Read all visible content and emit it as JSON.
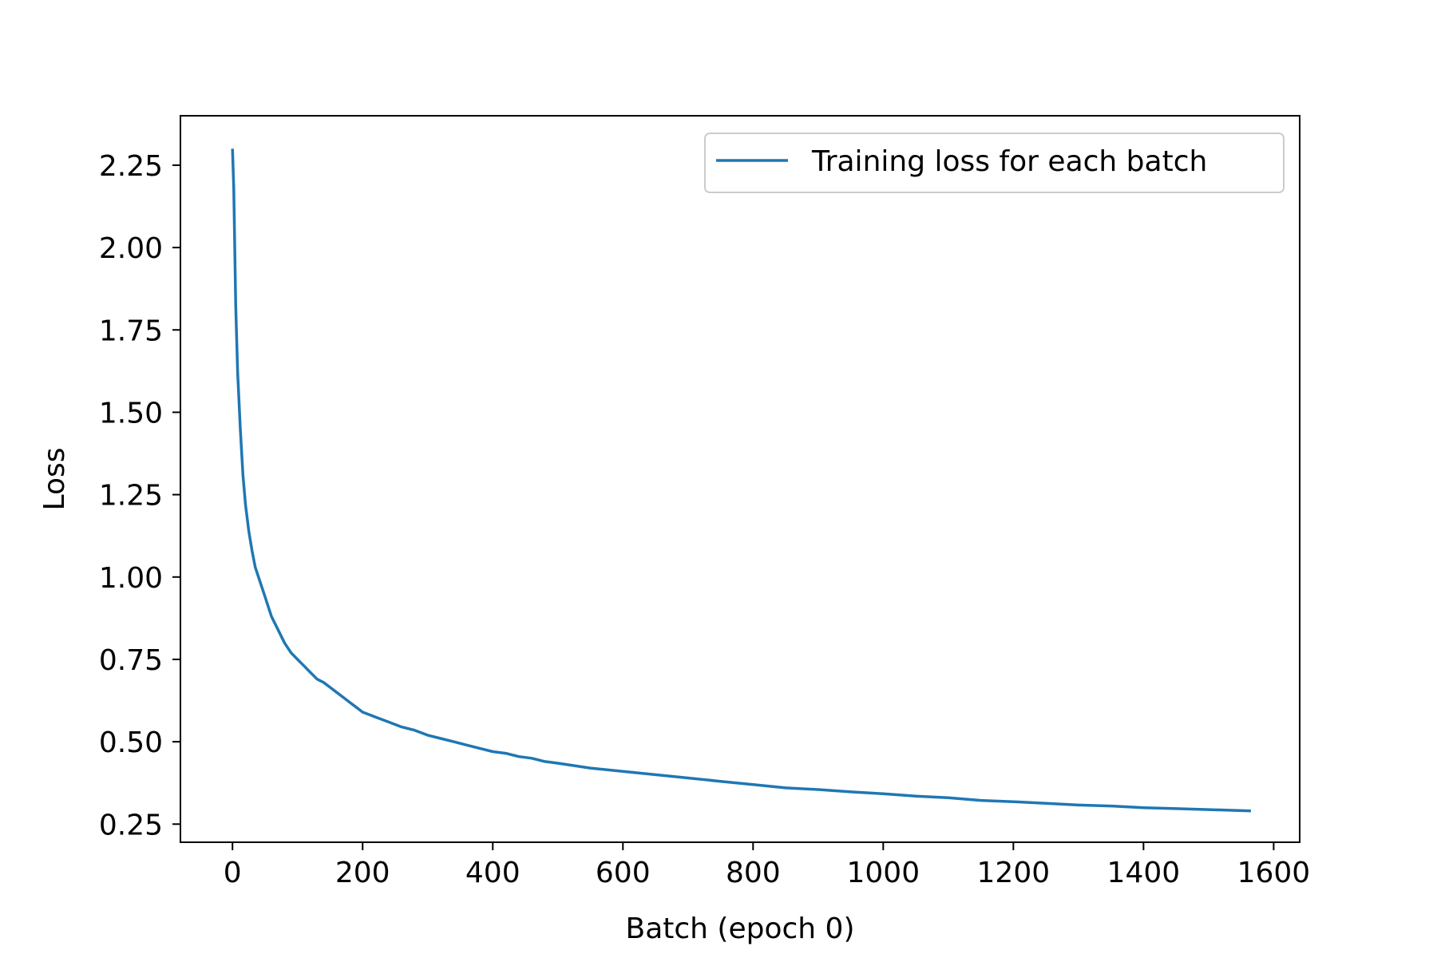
{
  "chart_data": {
    "type": "line",
    "title": "",
    "xlabel": "Batch (epoch 0)",
    "ylabel": "Loss",
    "xlim": [
      -80,
      1640
    ],
    "ylim": [
      0.195,
      2.4
    ],
    "xticks": [
      0,
      200,
      400,
      600,
      800,
      1000,
      1200,
      1400,
      1600
    ],
    "xtick_labels": [
      "0",
      "200",
      "400",
      "600",
      "800",
      "1000",
      "1200",
      "1400",
      "1600"
    ],
    "yticks": [
      0.25,
      0.5,
      0.75,
      1.0,
      1.25,
      1.5,
      1.75,
      2.0,
      2.25
    ],
    "ytick_labels": [
      "0.25",
      "0.50",
      "0.75",
      "1.00",
      "1.25",
      "1.50",
      "1.75",
      "2.00",
      "2.25"
    ],
    "grid": false,
    "legend_position": "upper right",
    "colors": {
      "series": "#1f77b4",
      "frame": "#000000",
      "legend_border": "#cccccc"
    },
    "series": [
      {
        "name": "Training loss for each batch",
        "x": [
          0,
          2,
          5,
          8,
          12,
          16,
          20,
          25,
          30,
          35,
          40,
          45,
          50,
          55,
          60,
          70,
          80,
          90,
          100,
          110,
          120,
          130,
          140,
          150,
          160,
          170,
          180,
          190,
          200,
          220,
          240,
          260,
          280,
          300,
          320,
          340,
          360,
          380,
          400,
          420,
          440,
          460,
          480,
          500,
          550,
          600,
          650,
          700,
          750,
          800,
          850,
          900,
          950,
          1000,
          1050,
          1100,
          1150,
          1200,
          1250,
          1300,
          1350,
          1400,
          1450,
          1500,
          1565
        ],
        "y": [
          2.3,
          2.18,
          1.82,
          1.62,
          1.45,
          1.31,
          1.22,
          1.14,
          1.08,
          1.03,
          1.0,
          0.97,
          0.94,
          0.91,
          0.88,
          0.84,
          0.8,
          0.77,
          0.75,
          0.73,
          0.71,
          0.69,
          0.68,
          0.665,
          0.65,
          0.635,
          0.62,
          0.605,
          0.59,
          0.575,
          0.56,
          0.545,
          0.535,
          0.52,
          0.51,
          0.5,
          0.49,
          0.48,
          0.47,
          0.465,
          0.455,
          0.45,
          0.44,
          0.435,
          0.42,
          0.41,
          0.4,
          0.39,
          0.38,
          0.37,
          0.36,
          0.355,
          0.348,
          0.342,
          0.335,
          0.33,
          0.322,
          0.318,
          0.313,
          0.308,
          0.305,
          0.3,
          0.297,
          0.294,
          0.29
        ]
      }
    ]
  }
}
